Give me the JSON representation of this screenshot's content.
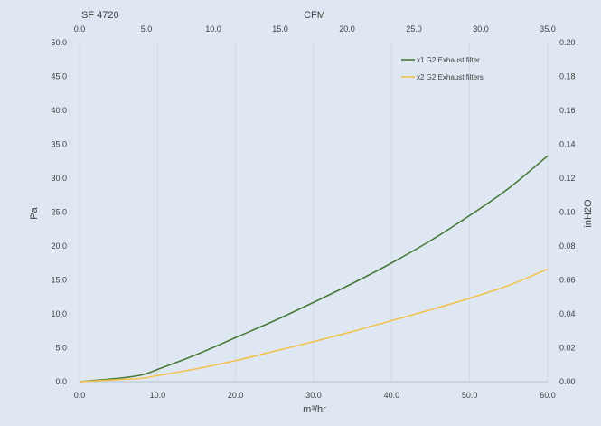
{
  "chart_data": {
    "type": "line",
    "title": "SF 4720",
    "bottom_axis": {
      "label": "m³/hr",
      "range": [
        0,
        60
      ],
      "ticks": [
        "0.0",
        "10.0",
        "20.0",
        "30.0",
        "40.0",
        "50.0",
        "60.0"
      ]
    },
    "top_axis": {
      "label": "CFM",
      "range": [
        0,
        35
      ],
      "ticks": [
        "0.0",
        "5.0",
        "10.0",
        "15.0",
        "20.0",
        "25.0",
        "30.0",
        "35.0"
      ]
    },
    "left_axis": {
      "label": "Pa",
      "range": [
        0,
        50
      ],
      "ticks": [
        "0.0",
        "5.0",
        "10.0",
        "15.0",
        "20.0",
        "25.0",
        "30.0",
        "35.0",
        "40.0",
        "45.0",
        "50.0"
      ]
    },
    "right_axis": {
      "label": "inH2O",
      "range": [
        0,
        0.2
      ],
      "ticks": [
        "0.00",
        "0.02",
        "0.04",
        "0.06",
        "0.08",
        "0.10",
        "0.12",
        "0.14",
        "0.16",
        "0.18",
        "0.20"
      ]
    },
    "grid": "vertical",
    "legend_position": "top-right",
    "series": [
      {
        "name": "x1 G2 Exhaust filter",
        "color": "#4a7a3a",
        "x": [
          0,
          5,
          8,
          10,
          15,
          20,
          25,
          30,
          35,
          40,
          45,
          50,
          55,
          60
        ],
        "y": [
          0,
          0.5,
          1.0,
          1.8,
          4.0,
          6.5,
          9.0,
          11.7,
          14.5,
          17.5,
          20.8,
          24.5,
          28.5,
          33.3
        ]
      },
      {
        "name": "x2 G2 Exhaust filters",
        "color": "#f2c14e",
        "x": [
          0,
          5,
          8,
          10,
          15,
          20,
          25,
          30,
          35,
          40,
          45,
          50,
          55,
          60
        ],
        "y": [
          0,
          0.3,
          0.5,
          0.9,
          1.9,
          3.1,
          4.5,
          5.9,
          7.4,
          9.0,
          10.6,
          12.3,
          14.2,
          16.6
        ]
      }
    ]
  }
}
